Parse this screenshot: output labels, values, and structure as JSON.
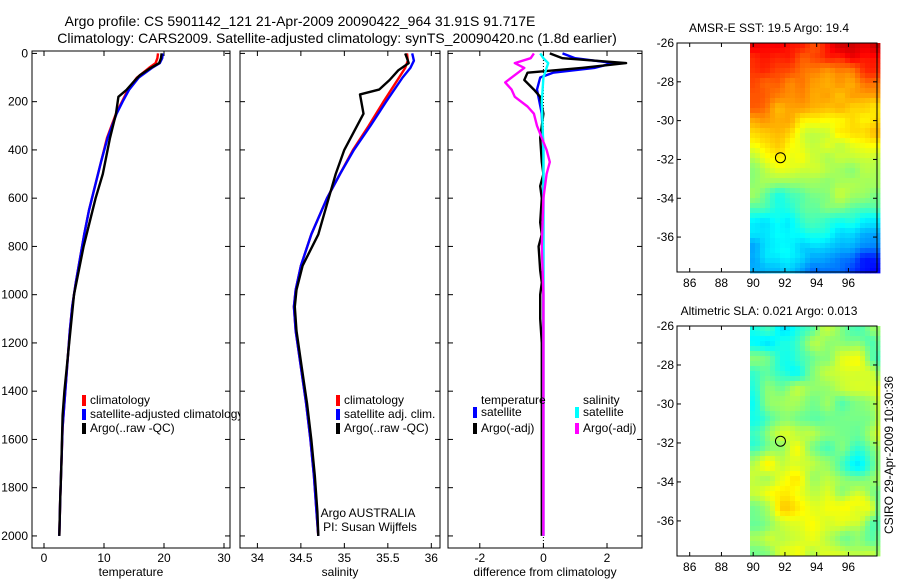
{
  "title_line1": "Argo profile: CS 5901142_121 21-Apr-2009 20090422_964 31.91S 91.717E",
  "title_line2": "Climatology: CARS2009. Satellite-adjusted climatology: synTS_20090420.nc (1.8d earlier)",
  "colors": {
    "climatology": "#ff0000",
    "satellite": "#0000ff",
    "argo": "#000000",
    "salinity_satellite": "#00ffff",
    "salinity_argo": "#ff00ff"
  },
  "chart_data": [
    {
      "id": "temperature",
      "type": "line",
      "xlabel": "temperature",
      "ylabel": "",
      "xlim": [
        -2,
        31
      ],
      "ylim": [
        2050,
        -10
      ],
      "xticks": [
        0,
        10,
        20,
        30
      ],
      "yticks": [
        0,
        200,
        400,
        600,
        800,
        1000,
        1200,
        1400,
        1600,
        1800,
        2000
      ],
      "y_reversed": true,
      "legend": [
        "climatology",
        "satellite-adjusted climatology",
        "Argo(..raw -QC)"
      ],
      "series": [
        {
          "name": "climatology",
          "color_key": "climatology",
          "x": [
            19.0,
            18.9,
            18.6,
            17.5,
            15.5,
            14.0,
            13.0,
            12.0,
            10.5,
            9.5,
            8.5,
            7.5,
            6.7,
            6.0,
            5.3,
            4.7,
            4.3,
            4.0,
            3.7,
            3.4,
            3.1,
            2.9,
            2.7,
            2.55
          ],
          "y": [
            0,
            20,
            40,
            60,
            100,
            150,
            200,
            250,
            350,
            450,
            550,
            650,
            750,
            850,
            950,
            1050,
            1150,
            1250,
            1350,
            1450,
            1550,
            1700,
            1850,
            2000
          ]
        },
        {
          "name": "satellite-adjusted climatology",
          "color_key": "satellite",
          "x": [
            19.8,
            19.7,
            19.3,
            18.0,
            15.8,
            14.2,
            13.1,
            12.1,
            10.6,
            9.5,
            8.5,
            7.5,
            6.7,
            6.0,
            5.3,
            4.7,
            4.3,
            4.0,
            3.7,
            3.4,
            3.1,
            2.9,
            2.7,
            2.55
          ],
          "y": [
            0,
            20,
            40,
            60,
            100,
            150,
            200,
            250,
            350,
            450,
            550,
            650,
            750,
            850,
            950,
            1050,
            1150,
            1250,
            1350,
            1450,
            1550,
            1700,
            1850,
            2000
          ]
        },
        {
          "name": "Argo(..raw -QC)",
          "color_key": "argo",
          "x": [
            19.6,
            19.5,
            19.2,
            17.8,
            16.0,
            15.2,
            13.8,
            12.4,
            12.0,
            11.0,
            9.8,
            8.6,
            7.6,
            6.6,
            5.8,
            5.0,
            4.6,
            4.2,
            3.8,
            3.4,
            3.1,
            2.9,
            2.7,
            2.55
          ],
          "y": [
            0,
            20,
            40,
            60,
            90,
            110,
            150,
            180,
            250,
            350,
            500,
            600,
            700,
            800,
            900,
            1000,
            1100,
            1200,
            1300,
            1400,
            1500,
            1700,
            1850,
            2000
          ]
        }
      ]
    },
    {
      "id": "salinity",
      "type": "line",
      "xlabel": "salinity",
      "ylabel": "",
      "xlim": [
        33.8,
        36.1
      ],
      "ylim": [
        2050,
        -10
      ],
      "xticks": [
        34,
        34.5,
        35,
        35.5,
        36
      ],
      "yticks": [
        0,
        200,
        400,
        600,
        800,
        1000,
        1200,
        1400,
        1600,
        1800,
        2000
      ],
      "y_reversed": true,
      "legend": [
        "climatology",
        "satellite adj. clim.",
        "Argo(..raw -QC)"
      ],
      "annotation": [
        "Argo AUSTRALIA",
        "PI: Susan Wijffels"
      ],
      "series": [
        {
          "name": "climatology",
          "color_key": "climatology",
          "x": [
            35.72,
            35.73,
            35.7,
            35.63,
            35.45,
            35.28,
            35.1,
            34.95,
            34.8,
            34.62,
            34.5,
            34.44,
            34.42,
            34.44,
            34.5,
            34.56,
            34.61,
            34.65,
            34.68,
            34.7
          ],
          "y": [
            0,
            30,
            60,
            100,
            200,
            300,
            400,
            500,
            600,
            750,
            880,
            980,
            1050,
            1150,
            1300,
            1450,
            1600,
            1750,
            1900,
            2000
          ]
        },
        {
          "name": "satellite adj. clim.",
          "color_key": "satellite",
          "x": [
            35.78,
            35.8,
            35.76,
            35.67,
            35.48,
            35.3,
            35.11,
            34.95,
            34.8,
            34.62,
            34.5,
            34.44,
            34.42,
            34.44,
            34.5,
            34.56,
            34.61,
            34.65,
            34.68,
            34.7
          ],
          "y": [
            0,
            30,
            60,
            100,
            200,
            300,
            400,
            500,
            600,
            750,
            880,
            980,
            1050,
            1150,
            1300,
            1450,
            1600,
            1750,
            1900,
            2000
          ]
        },
        {
          "name": "Argo(..raw -QC)",
          "color_key": "argo",
          "x": [
            35.7,
            35.72,
            35.74,
            35.62,
            35.52,
            35.4,
            35.18,
            35.22,
            35.0,
            34.9,
            34.82,
            34.7,
            34.52,
            34.45,
            34.43,
            34.45,
            34.51,
            34.57,
            34.62,
            34.66,
            34.69,
            34.7
          ],
          "y": [
            0,
            20,
            40,
            70,
            110,
            150,
            170,
            250,
            400,
            500,
            600,
            750,
            880,
            980,
            1050,
            1150,
            1300,
            1450,
            1600,
            1750,
            1900,
            2000
          ]
        }
      ]
    },
    {
      "id": "difference",
      "type": "line",
      "xlabel": "difference from climatology",
      "ylabel": "",
      "xlim": [
        -3,
        3.1
      ],
      "ylim": [
        2050,
        -10
      ],
      "xticks": [
        -2,
        0,
        2
      ],
      "yticks": [
        0,
        200,
        400,
        600,
        800,
        1000,
        1200,
        1400,
        1600,
        1800,
        2000
      ],
      "y_reversed": true,
      "legend_headers": [
        "temperature",
        "salinity"
      ],
      "legend": [
        "satellite",
        "Argo(-adj)",
        "satellite",
        "Argo(-adj)"
      ],
      "series": [
        {
          "name": "temperature satellite",
          "color_key": "satellite",
          "x": [
            0.6,
            1.0,
            2.2,
            1.6,
            0.3,
            -0.1,
            -0.2,
            -0.05,
            0.0,
            0.0,
            0.0,
            0.0,
            0.0
          ],
          "y": [
            0,
            20,
            40,
            60,
            80,
            100,
            150,
            250,
            400,
            700,
            1000,
            1500,
            2000
          ]
        },
        {
          "name": "temperature Argo(-adj)",
          "color_key": "argo",
          "x": [
            0.2,
            0.6,
            2.6,
            1.2,
            -0.5,
            -0.6,
            -0.3,
            -0.1,
            0.0,
            -0.1,
            -0.05,
            0.0,
            -0.1,
            -0.05,
            -0.1,
            -0.05,
            -0.15,
            -0.1,
            -0.05,
            -0.1,
            -0.1,
            -0.05,
            -0.05,
            -0.05,
            -0.05,
            -0.05
          ],
          "y": [
            0,
            20,
            40,
            60,
            80,
            110,
            150,
            180,
            250,
            350,
            450,
            500,
            550,
            600,
            700,
            750,
            800,
            900,
            950,
            1000,
            1100,
            1200,
            1400,
            1600,
            1800,
            2000
          ]
        },
        {
          "name": "salinity satellite",
          "color_key": "salinity_satellite",
          "x": [
            -0.1,
            0.0,
            0.15,
            0.1,
            0.0,
            -0.05,
            0.0,
            0.0,
            0.0,
            0.0,
            0.0,
            0.0,
            0.0
          ],
          "y": [
            0,
            20,
            40,
            60,
            100,
            200,
            400,
            600,
            800,
            1000,
            1400,
            1800,
            2000
          ]
        },
        {
          "name": "salinity Argo(-adj)",
          "color_key": "salinity_argo",
          "x": [
            -0.3,
            -0.4,
            -0.9,
            -0.6,
            -1.2,
            -1.0,
            -0.9,
            -0.5,
            -0.3,
            -0.2,
            0.1,
            0.2,
            0.1,
            0.0,
            -0.05,
            0.0,
            0.0,
            0.0,
            0.0,
            0.0
          ],
          "y": [
            0,
            20,
            40,
            60,
            120,
            150,
            180,
            220,
            250,
            300,
            400,
            450,
            500,
            600,
            800,
            1000,
            1200,
            1500,
            1800,
            2000
          ]
        }
      ]
    },
    {
      "id": "sst_map",
      "type": "heatmap",
      "title": "AMSR-E SST: 19.5 Argo: 19.4",
      "xticks": [
        86,
        88,
        90,
        92,
        94,
        96
      ],
      "yticks": [
        -26,
        -28,
        -30,
        -32,
        -34,
        -36
      ],
      "xlim": [
        85.2,
        97.8
      ],
      "ylim": [
        -37.8,
        -26
      ],
      "data_xlim": [
        89.8,
        97.8
      ],
      "marker": {
        "lon": 91.717,
        "lat": -31.91
      },
      "cmap_domain": [
        15,
        25
      ]
    },
    {
      "id": "sla_map",
      "type": "heatmap",
      "title": "Altimetric SLA: 0.021 Argo: 0.013",
      "xticks": [
        86,
        88,
        90,
        92,
        94,
        96
      ],
      "yticks": [
        -26,
        -28,
        -30,
        -32,
        -34,
        -36
      ],
      "xlim": [
        85.2,
        97.8
      ],
      "ylim": [
        -37.8,
        -26
      ],
      "data_xlim": [
        89.8,
        97.8
      ],
      "marker": {
        "lon": 91.717,
        "lat": -31.91
      }
    }
  ],
  "credit": "CSIRO 29-Apr-2009 10:30:36"
}
